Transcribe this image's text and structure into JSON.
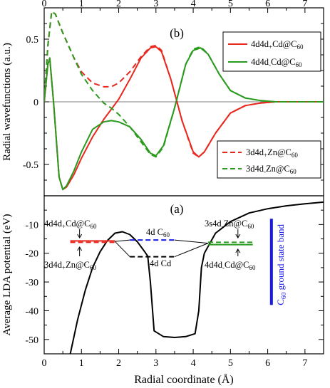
{
  "figure": {
    "xlabel": "Radial coordinate (Å)",
    "x_ticks": [
      "0",
      "1",
      "2",
      "3",
      "4",
      "5",
      "6",
      "7"
    ]
  },
  "chart_data": [
    {
      "type": "line",
      "panel_label": "(b)",
      "ylabel": "Radial wavefunctions (a.u.)",
      "xlim": [
        0,
        7.5
      ],
      "ylim": [
        -0.75,
        0.75
      ],
      "y_ticks": [
        "0.5",
        "0",
        "-0.5"
      ],
      "colors": {
        "red": "#e8281e",
        "green": "#2a9a1e"
      },
      "legend_solid": [
        {
          "sym": "4d4d",
          "sub": "+",
          "mid": "Cd@C",
          "tail": "60",
          "color": "red",
          "dash": false
        },
        {
          "sym": "4d4d",
          "sub": "-",
          "mid": "Cd@C",
          "tail": "60",
          "color": "green",
          "dash": false
        }
      ],
      "legend_dashed": [
        {
          "sym": "3d4d",
          "sub": "+",
          "mid": "Zn@C",
          "tail": "60",
          "color": "red",
          "dash": true
        },
        {
          "sym": "3d4d",
          "sub": "-",
          "mid": "Zn@C",
          "tail": "60",
          "color": "green",
          "dash": true
        }
      ],
      "series": [
        {
          "name": "4d4d+Cd@C60",
          "color": "red",
          "dash": false,
          "x": [
            0.0,
            0.1,
            0.15,
            0.25,
            0.4,
            0.5,
            0.6,
            0.8,
            1.0,
            1.3,
            1.6,
            2.0,
            2.3,
            2.6,
            2.85,
            3.0,
            3.15,
            3.4,
            3.7,
            4.0,
            4.15,
            4.3,
            4.6,
            5.0,
            5.4,
            5.8,
            6.2,
            6.6,
            7.0,
            7.5
          ],
          "y": [
            0.0,
            0.3,
            0.35,
            0.0,
            -0.6,
            -0.7,
            -0.68,
            -0.58,
            -0.45,
            -0.28,
            -0.14,
            0.02,
            0.18,
            0.35,
            0.43,
            0.44,
            0.4,
            0.18,
            -0.15,
            -0.4,
            -0.44,
            -0.4,
            -0.25,
            -0.09,
            -0.03,
            -0.01,
            0.0,
            0.0,
            0.0,
            0.0
          ]
        },
        {
          "name": "4d4d-Cd@C60",
          "color": "green",
          "dash": false,
          "x": [
            0.0,
            0.1,
            0.15,
            0.25,
            0.4,
            0.5,
            0.6,
            0.8,
            1.0,
            1.3,
            1.6,
            1.8,
            2.0,
            2.3,
            2.6,
            2.85,
            3.0,
            3.2,
            3.5,
            3.8,
            4.0,
            4.2,
            4.4,
            4.7,
            5.0,
            5.4,
            5.8,
            6.2,
            6.6,
            7.0,
            7.5
          ],
          "y": [
            0.0,
            0.3,
            0.35,
            0.0,
            -0.6,
            -0.7,
            -0.67,
            -0.55,
            -0.4,
            -0.22,
            -0.16,
            -0.15,
            -0.16,
            -0.2,
            -0.3,
            -0.41,
            -0.43,
            -0.35,
            -0.05,
            0.3,
            0.41,
            0.43,
            0.38,
            0.22,
            0.09,
            0.03,
            0.01,
            0.0,
            0.0,
            0.0,
            0.0
          ]
        },
        {
          "name": "3d4d+Zn@C60",
          "color": "red",
          "dash": true,
          "x": [
            0.0,
            0.1,
            0.2,
            0.3,
            0.5,
            0.8,
            1.0,
            1.3,
            1.6,
            1.8,
            2.0,
            2.3,
            2.6,
            2.85,
            3.0,
            3.15,
            3.4,
            3.7,
            4.0,
            4.15,
            4.3,
            4.6,
            5.0,
            5.4,
            5.8,
            6.2,
            6.6,
            7.0,
            7.5
          ],
          "y": [
            0.0,
            0.45,
            0.72,
            0.7,
            0.55,
            0.35,
            0.24,
            0.15,
            0.12,
            0.12,
            0.15,
            0.24,
            0.36,
            0.44,
            0.45,
            0.41,
            0.18,
            -0.15,
            -0.41,
            -0.44,
            -0.4,
            -0.25,
            -0.09,
            -0.03,
            -0.01,
            0.0,
            0.0,
            0.0,
            0.0
          ]
        },
        {
          "name": "3d4d-Zn@C60",
          "color": "green",
          "dash": true,
          "x": [
            0.0,
            0.1,
            0.2,
            0.3,
            0.5,
            0.8,
            1.0,
            1.3,
            1.6,
            1.8,
            2.0,
            2.3,
            2.6,
            2.85,
            3.0,
            3.2,
            3.5,
            3.8,
            4.0,
            4.2,
            4.4,
            4.7,
            5.0,
            5.4,
            5.8,
            6.2,
            6.6,
            7.0,
            7.5
          ],
          "y": [
            0.0,
            0.45,
            0.72,
            0.7,
            0.55,
            0.35,
            0.22,
            0.09,
            -0.01,
            -0.05,
            -0.1,
            -0.2,
            -0.32,
            -0.42,
            -0.44,
            -0.36,
            -0.05,
            0.3,
            0.42,
            0.44,
            0.38,
            0.22,
            0.09,
            0.03,
            0.01,
            0.0,
            0.0,
            0.0,
            0.0
          ]
        }
      ]
    },
    {
      "type": "line",
      "panel_label": "(a)",
      "ylabel": "Average LDA potential (eV)",
      "xlim": [
        0,
        7.5
      ],
      "ylim": [
        -55,
        0
      ],
      "y_ticks": [
        "-10",
        "-20",
        "-30",
        "-40",
        "-50"
      ],
      "colors": {
        "red": "#e8281e",
        "green": "#2a9a1e",
        "blue": "#1a1ae6",
        "black": "#000000"
      },
      "series": [
        {
          "name": "potential",
          "color": "black",
          "dash": false,
          "x": [
            0.7,
            0.9,
            1.1,
            1.3,
            1.5,
            1.7,
            1.9,
            2.1,
            2.3,
            2.5,
            2.7,
            2.78,
            2.85,
            2.95,
            3.2,
            3.5,
            3.8,
            4.05,
            4.15,
            4.22,
            4.3,
            4.6,
            5.0,
            5.5,
            6.0,
            6.5,
            7.0,
            7.5
          ],
          "y": [
            -55,
            -43,
            -33,
            -25,
            -19.5,
            -15.5,
            -13,
            -12.5,
            -13.5,
            -16,
            -19.5,
            -21,
            -30,
            -47,
            -49,
            -49.3,
            -49,
            -48,
            -40,
            -25,
            -20,
            -13,
            -9,
            -6,
            -4.5,
            -3.5,
            -2.8,
            -2.2
          ]
        }
      ],
      "levels": [
        {
          "label": "4d4d+Cd@C60",
          "x": [
            0.7,
            1.9
          ],
          "y": -15.7,
          "color": "red",
          "dash": false
        },
        {
          "label": "3d4d+Zn@C60",
          "x": [
            0.7,
            1.9
          ],
          "y": -16.2,
          "color": "red",
          "dash": true
        },
        {
          "label": "4d C60",
          "x": [
            2.3,
            3.5
          ],
          "y": -15.4,
          "color": "blue",
          "dash": true
        },
        {
          "label": "4d Cd",
          "x": [
            2.3,
            3.5
          ],
          "y": -21.2,
          "color": "black",
          "dash": true
        },
        {
          "label": "3s4d-Zn@C60",
          "x": [
            4.4,
            5.6
          ],
          "y": -16.2,
          "color": "green",
          "dash": true
        },
        {
          "label": "4d4d-Cd@C60",
          "x": [
            4.4,
            5.6
          ],
          "y": -17.0,
          "color": "green",
          "dash": false
        }
      ],
      "band": {
        "label_main": "C",
        "label_sub": "60",
        "label_rest": " ground state band",
        "x": 6.1,
        "y": [
          -38,
          -8
        ],
        "color": "blue"
      },
      "annotations": [
        {
          "sym": "4d4d",
          "sub": "+",
          "mid": "Cd@C",
          "tail": "60"
        },
        {
          "sym": "3d4d",
          "sub": "+",
          "mid": "Zn@C",
          "tail": "60"
        },
        {
          "sym": "4d C",
          "sub": "",
          "mid": "",
          "tail": "60"
        },
        {
          "sym": "4d Cd",
          "sub": "",
          "mid": "",
          "tail": ""
        },
        {
          "sym": "3s4d",
          "sub": "-",
          "mid": "Zn@C",
          "tail": "60"
        },
        {
          "sym": "4d4d",
          "sub": "-",
          "mid": "Cd@C",
          "tail": "60"
        }
      ]
    }
  ]
}
